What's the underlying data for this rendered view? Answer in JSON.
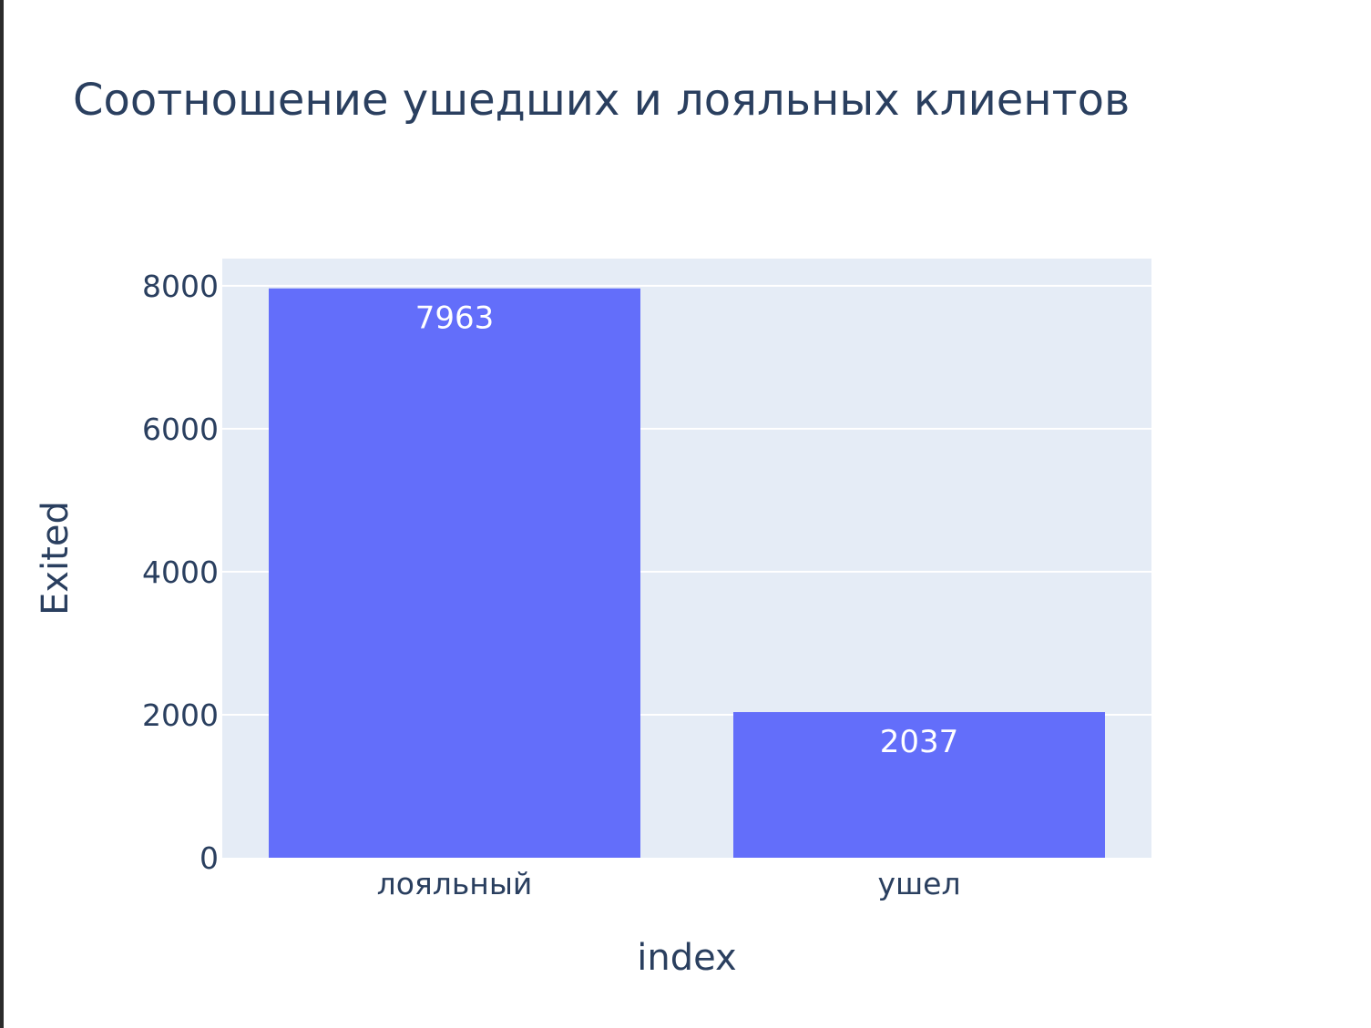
{
  "chart_data": {
    "type": "bar",
    "title": "Соотношение ушедших и лояльных клиентов",
    "xlabel": "index",
    "ylabel": "Exited",
    "categories": [
      "лояльный",
      "ушел"
    ],
    "values": [
      7963,
      2037
    ],
    "value_labels": [
      "7963",
      "2037"
    ],
    "yticks": [
      0,
      2000,
      4000,
      6000,
      8000
    ],
    "ytick_labels": [
      "0",
      "2000",
      "4000",
      "6000",
      "8000"
    ],
    "ylim": [
      0,
      8380
    ],
    "grid": true,
    "colors": {
      "bar": "#636efa",
      "plot_bg": "#e5ecf6",
      "grid": "#ffffff",
      "text": "#2a3f5f"
    }
  }
}
